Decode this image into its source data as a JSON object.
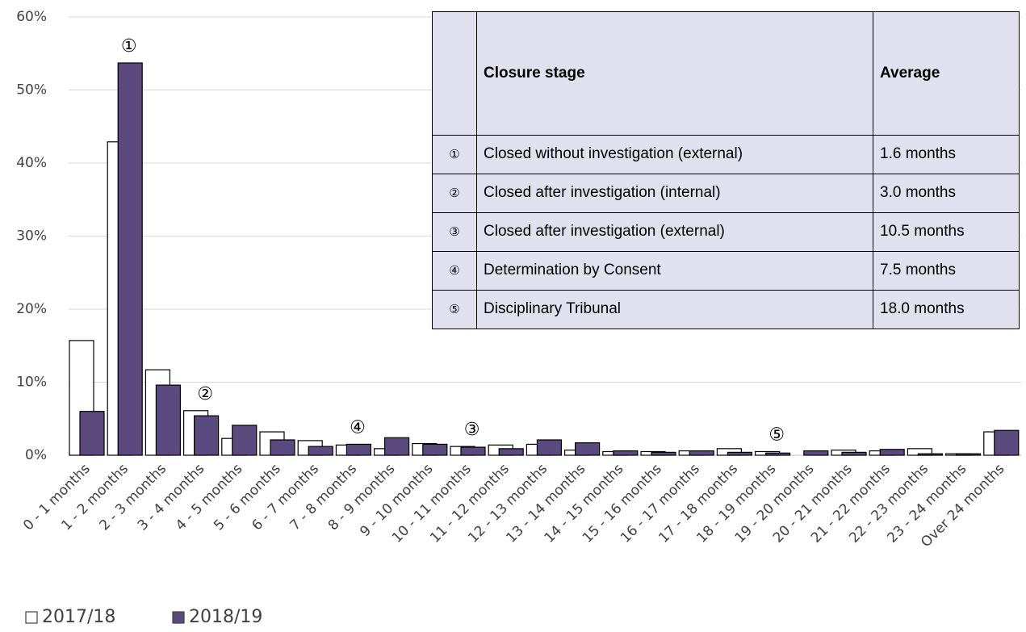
{
  "chart_data": {
    "type": "bar",
    "categories": [
      "0 - 1 months",
      "1 - 2 months",
      "2 - 3 months",
      "3 - 4 months",
      "4 - 5 months",
      "5 - 6 months",
      "6 - 7 months",
      "7 - 8 months",
      "8 - 9 months",
      "9 - 10 months",
      "10 - 11 months",
      "11 - 12 months",
      "12 - 13 months",
      "13 - 14 months",
      "14 - 15 months",
      "15 - 16 months",
      "16 - 17 months",
      "17 - 18 months",
      "18 - 19 months",
      "19 - 20 months",
      "20 - 21 months",
      "21 - 22 months",
      "22 - 23 months",
      "23 - 24 months",
      "Over 24 months"
    ],
    "series": [
      {
        "name": "2017/18",
        "color": "#ffffff",
        "values": [
          15.7,
          42.9,
          11.7,
          6.1,
          2.3,
          3.2,
          2.0,
          1.4,
          0.9,
          1.6,
          1.2,
          1.4,
          1.5,
          0.7,
          0.5,
          0.5,
          0.6,
          0.9,
          0.5,
          0,
          0.7,
          0.6,
          0.9,
          0.2,
          3.2
        ]
      },
      {
        "name": "2018/19",
        "color": "#5b4a7e",
        "values": [
          6.0,
          53.7,
          9.6,
          5.4,
          4.1,
          2.1,
          1.2,
          1.5,
          2.4,
          1.5,
          1.1,
          0.9,
          2.1,
          1.7,
          0.6,
          0.4,
          0.6,
          0.4,
          0.3,
          0.6,
          0.4,
          0.8,
          0.2,
          0.2,
          3.4
        ]
      }
    ],
    "ylim": [
      0,
      60
    ],
    "yticks": [
      {
        "value": 0,
        "label": "0%"
      },
      {
        "value": 10,
        "label": "10%"
      },
      {
        "value": 20,
        "label": "20%"
      },
      {
        "value": 30,
        "label": "30%"
      },
      {
        "value": 40,
        "label": "40%"
      },
      {
        "value": 50,
        "label": "50%"
      },
      {
        "value": 60,
        "label": "60%"
      }
    ],
    "grid": true,
    "legend": "bottom-left",
    "annotations": [
      {
        "text": "①",
        "category": "1 - 2 months"
      },
      {
        "text": "②",
        "category": "3 - 4 months"
      },
      {
        "text": "④",
        "category": "7 - 8 months"
      },
      {
        "text": "③",
        "category": "10 - 11 months"
      },
      {
        "text": "⑤",
        "category": "18 - 19 months"
      }
    ]
  },
  "table": {
    "header": [
      "Closure stage",
      "Average"
    ],
    "rows": [
      [
        "①",
        "Closed without investigation (external)",
        "1.6 months"
      ],
      [
        "②",
        "Closed after investigation (internal)",
        "3.0 months"
      ],
      [
        "③",
        "Closed after investigation (external)",
        "10.5 months"
      ],
      [
        "④",
        "Determination by Consent",
        "7.5 months"
      ],
      [
        "⑤",
        "Disciplinary Tribunal",
        "18.0 months"
      ]
    ]
  }
}
